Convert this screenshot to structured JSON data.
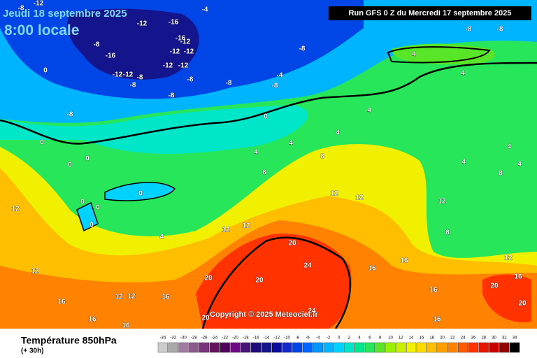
{
  "header": {
    "date": "Jeudi 18 septembre 2025",
    "time": "8:00 locale",
    "run": "Run GFS 0 Z du Mercredi 17 septembre 2025"
  },
  "footer": {
    "parameter": "Température 850hPa",
    "lead": "(+ 30h)",
    "copyright": "Copyright © 2025 Meteociel.fr"
  },
  "legend": {
    "values": [
      -34,
      -32,
      -30,
      -28,
      -26,
      -24,
      -22,
      -20,
      -18,
      -16,
      -14,
      -12,
      -10,
      -8,
      -6,
      -4,
      -2,
      0,
      2,
      4,
      6,
      8,
      10,
      12,
      14,
      16,
      18,
      20,
      22,
      24,
      26,
      28,
      30,
      32,
      34
    ],
    "colors": [
      "#cccccc",
      "#aaaaaa",
      "#a07ca0",
      "#8c5a8c",
      "#78347a",
      "#64145f",
      "#50005a",
      "#6e0a82",
      "#461478",
      "#1e0a78",
      "#14148c",
      "#0a0aa0",
      "#1428c8",
      "#0046e6",
      "#0064ff",
      "#0096ff",
      "#00b4ff",
      "#00d2ff",
      "#00e6c8",
      "#00e68c",
      "#28e65a",
      "#5ae628",
      "#96f000",
      "#c8f000",
      "#f0f000",
      "#ffdc00",
      "#ffbe00",
      "#ffa000",
      "#ff8200",
      "#ff5a00",
      "#ff3200",
      "#e61400",
      "#c80000",
      "#960000",
      "#000000"
    ]
  },
  "contour_labels": [
    "-8",
    "-12",
    "-4",
    "-12",
    "-16",
    "-16",
    "-12",
    "-12",
    "-12",
    "-8",
    "-16",
    "-12",
    "-12",
    "-8",
    "-8",
    "-12",
    "-12",
    "-8",
    "-8",
    "-8",
    "-4",
    "-8",
    "-8",
    "-8",
    "0",
    "0",
    "-8",
    "-8",
    "4",
    "4",
    "4",
    "4",
    "4",
    "4",
    "4",
    "4",
    "4",
    "4",
    "0",
    "0",
    "0",
    "0",
    "0",
    "0",
    "0",
    "8",
    "8",
    "8",
    "8",
    "12",
    "12",
    "12",
    "12",
    "12",
    "12",
    "12",
    "12",
    "12",
    "12",
    "16",
    "16",
    "16",
    "16",
    "16",
    "16",
    "16",
    "16",
    "16",
    "20",
    "20",
    "20",
    "20",
    "20",
    "20",
    "24",
    "24"
  ]
}
